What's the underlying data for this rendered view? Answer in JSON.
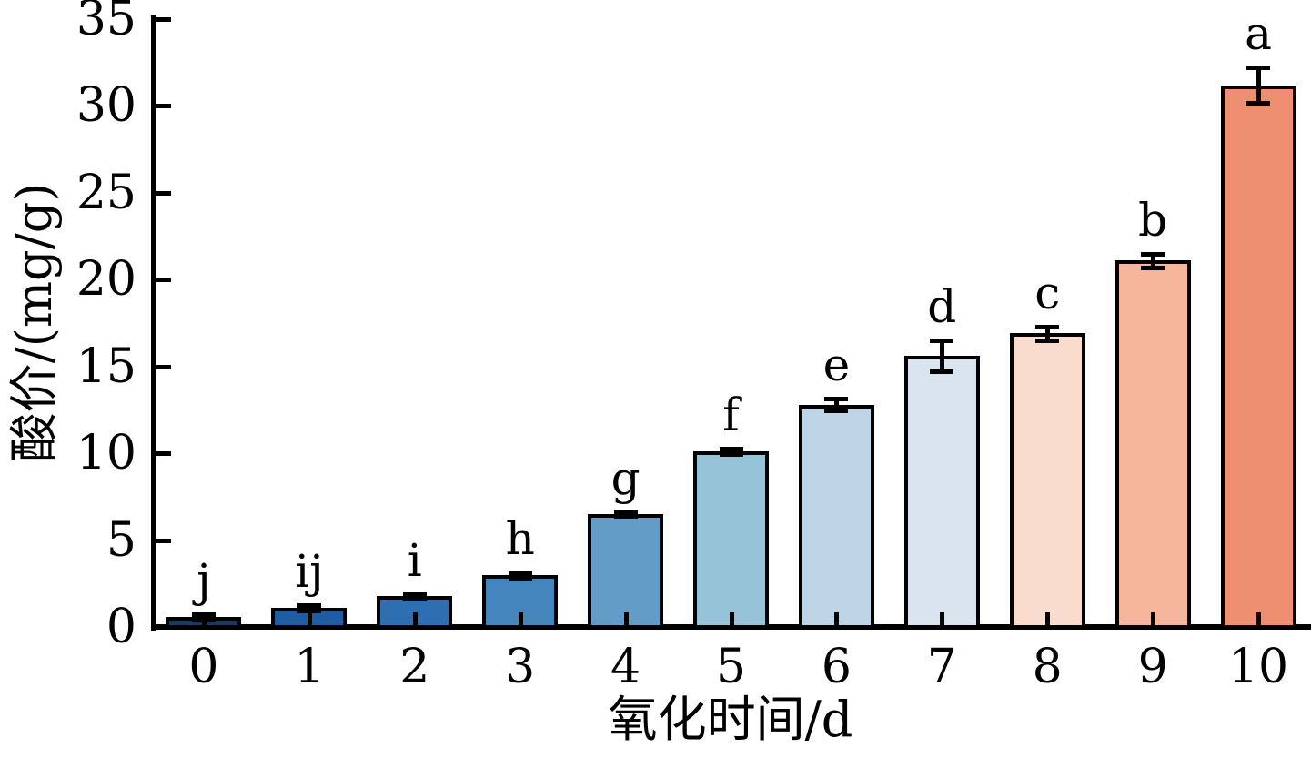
{
  "chart_data": {
    "type": "bar",
    "title": "",
    "xlabel": "氧化时间/d",
    "ylabel": "酸价/(mg/g)",
    "categories": [
      "0",
      "1",
      "2",
      "3",
      "4",
      "5",
      "6",
      "7",
      "8",
      "9",
      "10"
    ],
    "values": [
      0.6,
      1.1,
      1.8,
      3.0,
      6.5,
      10.1,
      12.8,
      15.6,
      16.9,
      21.1,
      31.2
    ],
    "errors": [
      0.15,
      0.15,
      0.1,
      0.15,
      0.1,
      0.15,
      0.35,
      0.9,
      0.4,
      0.4,
      1.0
    ],
    "sig_letters": [
      "j",
      "ij",
      "i",
      "h",
      "g",
      "f",
      "e",
      "d",
      "c",
      "b",
      "a"
    ],
    "bar_colors": [
      "#1b3a5e",
      "#1e5ca3",
      "#2e6fb3",
      "#4585bd",
      "#649cc8",
      "#96c3d8",
      "#bed5e6",
      "#dae4ef",
      "#fadcce",
      "#f5b69c",
      "#ef8f72"
    ],
    "bar_edge_color": "#000000",
    "ylim": [
      0,
      35
    ],
    "yticks": [
      0,
      5,
      10,
      15,
      20,
      25,
      30,
      35
    ],
    "grid": false,
    "legend": "none",
    "tick_direction": "in",
    "error_bars": true
  }
}
